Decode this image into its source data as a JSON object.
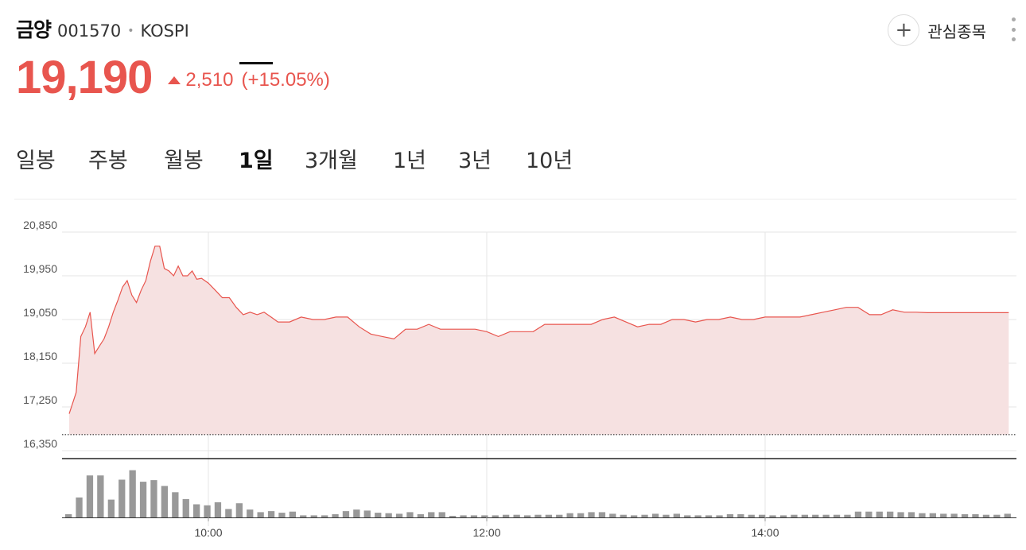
{
  "stock": {
    "name": "금양",
    "code": "001570",
    "separator": "•",
    "market": "KOSPI"
  },
  "actions": {
    "favorite_plus": "+",
    "favorite_label": "관심종목"
  },
  "price": {
    "current": "19,190",
    "change": "2,510",
    "change_pct": "(+15.05%)",
    "direction": "up"
  },
  "colors": {
    "up": "#e8554e",
    "area_fill": "#f6e1e1",
    "volume_bar": "#999999",
    "baseline_dotted": "#333333"
  },
  "tabs": [
    {
      "label": "일봉",
      "active": false
    },
    {
      "label": "주봉",
      "active": false
    },
    {
      "label": "월봉",
      "active": false
    },
    {
      "label": "1일",
      "active": true
    },
    {
      "label": "3개월",
      "active": false
    },
    {
      "label": "1년",
      "active": false
    },
    {
      "label": "3년",
      "active": false
    },
    {
      "label": "10년",
      "active": false
    }
  ],
  "chart_data": {
    "type": "area",
    "xlabel": "",
    "ylabel": "",
    "y_ticks": [
      "20,850",
      "19,950",
      "19,050",
      "18,150",
      "17,250",
      "16,350"
    ],
    "ylim": [
      16350,
      20850
    ],
    "x_ticks": [
      "10:00",
      "12:00",
      "14:00"
    ],
    "x_range": [
      "09:00",
      "15:45"
    ],
    "previous_close": 16680,
    "grid": true,
    "series": [
      {
        "values": [
          [
            "09:00",
            17110
          ],
          [
            "09:03",
            17550
          ],
          [
            "09:05",
            18700
          ],
          [
            "09:07",
            18900
          ],
          [
            "09:09",
            19200
          ],
          [
            "09:11",
            18350
          ],
          [
            "09:13",
            18500
          ],
          [
            "09:15",
            18650
          ],
          [
            "09:17",
            18900
          ],
          [
            "09:19",
            19200
          ],
          [
            "09:21",
            19450
          ],
          [
            "09:23",
            19720
          ],
          [
            "09:25",
            19850
          ],
          [
            "09:27",
            19550
          ],
          [
            "09:29",
            19400
          ],
          [
            "09:31",
            19650
          ],
          [
            "09:33",
            19850
          ],
          [
            "09:35",
            20250
          ],
          [
            "09:37",
            20560
          ],
          [
            "09:39",
            20560
          ],
          [
            "09:41",
            20100
          ],
          [
            "09:43",
            20050
          ],
          [
            "09:45",
            19950
          ],
          [
            "09:47",
            20150
          ],
          [
            "09:49",
            19950
          ],
          [
            "09:51",
            19950
          ],
          [
            "09:53",
            20050
          ],
          [
            "09:55",
            19880
          ],
          [
            "09:57",
            19900
          ],
          [
            "10:00",
            19800
          ],
          [
            "10:03",
            19650
          ],
          [
            "10:06",
            19500
          ],
          [
            "10:09",
            19500
          ],
          [
            "10:12",
            19300
          ],
          [
            "10:15",
            19150
          ],
          [
            "10:18",
            19200
          ],
          [
            "10:21",
            19150
          ],
          [
            "10:24",
            19200
          ],
          [
            "10:27",
            19100
          ],
          [
            "10:30",
            19000
          ],
          [
            "10:35",
            19000
          ],
          [
            "10:40",
            19100
          ],
          [
            "10:45",
            19050
          ],
          [
            "10:50",
            19050
          ],
          [
            "10:55",
            19100
          ],
          [
            "11:00",
            19100
          ],
          [
            "11:05",
            18900
          ],
          [
            "11:10",
            18750
          ],
          [
            "11:15",
            18700
          ],
          [
            "11:20",
            18650
          ],
          [
            "11:25",
            18850
          ],
          [
            "11:30",
            18850
          ],
          [
            "11:35",
            18950
          ],
          [
            "11:40",
            18850
          ],
          [
            "11:45",
            18850
          ],
          [
            "11:50",
            18850
          ],
          [
            "11:55",
            18850
          ],
          [
            "12:00",
            18800
          ],
          [
            "12:05",
            18700
          ],
          [
            "12:10",
            18800
          ],
          [
            "12:15",
            18800
          ],
          [
            "12:20",
            18800
          ],
          [
            "12:25",
            18950
          ],
          [
            "12:30",
            18950
          ],
          [
            "12:35",
            18950
          ],
          [
            "12:40",
            18950
          ],
          [
            "12:45",
            18950
          ],
          [
            "12:50",
            19050
          ],
          [
            "12:55",
            19100
          ],
          [
            "13:00",
            19000
          ],
          [
            "13:05",
            18900
          ],
          [
            "13:10",
            18950
          ],
          [
            "13:15",
            18950
          ],
          [
            "13:20",
            19050
          ],
          [
            "13:25",
            19050
          ],
          [
            "13:30",
            19000
          ],
          [
            "13:35",
            19050
          ],
          [
            "13:40",
            19050
          ],
          [
            "13:45",
            19100
          ],
          [
            "13:50",
            19050
          ],
          [
            "13:55",
            19050
          ],
          [
            "14:00",
            19100
          ],
          [
            "14:05",
            19100
          ],
          [
            "14:10",
            19100
          ],
          [
            "14:15",
            19100
          ],
          [
            "14:20",
            19150
          ],
          [
            "14:25",
            19200
          ],
          [
            "14:30",
            19250
          ],
          [
            "14:35",
            19300
          ],
          [
            "14:40",
            19300
          ],
          [
            "14:45",
            19150
          ],
          [
            "14:50",
            19150
          ],
          [
            "14:55",
            19250
          ],
          [
            "15:00",
            19200
          ],
          [
            "15:05",
            19200
          ],
          [
            "15:10",
            19190
          ],
          [
            "15:20",
            19190
          ],
          [
            "15:30",
            19190
          ],
          [
            "15:45",
            19190
          ]
        ]
      }
    ],
    "volume": {
      "unit": "relative",
      "values": [
        0.06,
        0.38,
        0.8,
        0.8,
        0.34,
        0.72,
        0.9,
        0.68,
        0.71,
        0.6,
        0.48,
        0.35,
        0.25,
        0.23,
        0.29,
        0.16,
        0.27,
        0.15,
        0.1,
        0.12,
        0.09,
        0.11,
        0.04,
        0.04,
        0.04,
        0.06,
        0.12,
        0.15,
        0.13,
        0.09,
        0.08,
        0.07,
        0.1,
        0.06,
        0.1,
        0.1,
        0.03,
        0.04,
        0.04,
        0.04,
        0.04,
        0.05,
        0.05,
        0.04,
        0.05,
        0.05,
        0.05,
        0.08,
        0.08,
        0.1,
        0.1,
        0.07,
        0.05,
        0.04,
        0.05,
        0.07,
        0.05,
        0.07,
        0.04,
        0.04,
        0.04,
        0.04,
        0.06,
        0.06,
        0.05,
        0.05,
        0.04,
        0.04,
        0.05,
        0.05,
        0.05,
        0.05,
        0.05,
        0.05,
        0.11,
        0.11,
        0.11,
        0.11,
        0.1,
        0.1,
        0.08,
        0.08,
        0.07,
        0.07,
        0.06,
        0.06,
        0.05,
        0.05,
        0.07
      ]
    }
  }
}
